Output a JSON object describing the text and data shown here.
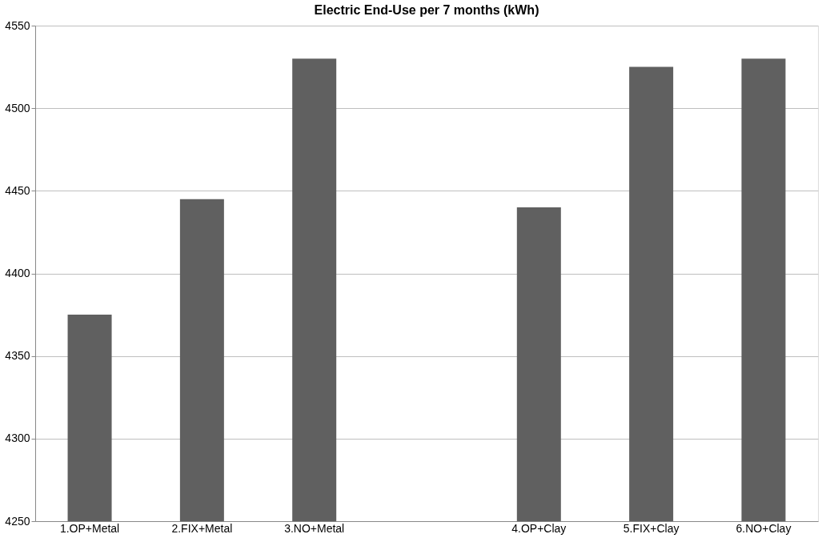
{
  "chart_data": {
    "type": "bar",
    "title": "Electric End-Use per 7 months  (kWh)",
    "categories": [
      "1.OP+Metal",
      "2.FIX+Metal",
      "3.NO+Metal",
      null,
      "4.OP+Clay",
      "5.FIX+Clay",
      "6.NO+Clay"
    ],
    "values": [
      4375,
      4445,
      4530,
      null,
      4440,
      4525,
      4530
    ],
    "color": "#606060",
    "ylim": [
      4250,
      4550
    ],
    "yticks": [
      4250,
      4300,
      4350,
      4400,
      4450,
      4500,
      4550
    ],
    "grid": "y"
  }
}
